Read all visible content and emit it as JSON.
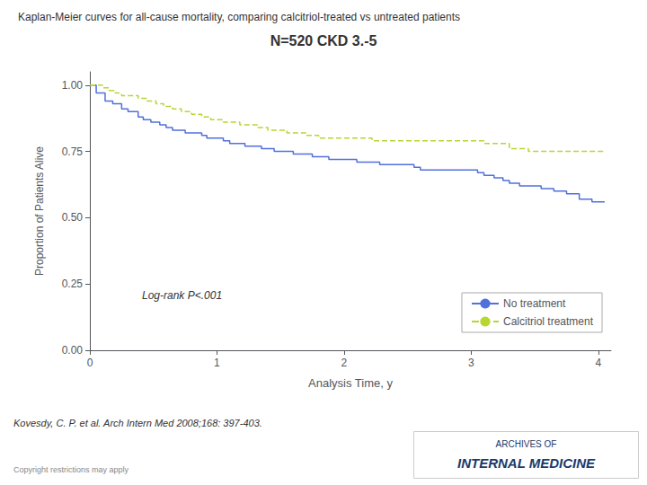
{
  "chart_data": {
    "type": "step",
    "title": "Kaplan-Meier curves for all-cause mortality, comparing calcitriol-treated vs untreated patients",
    "subtitle": "N=520 CKD 3.-5",
    "xlabel": "Analysis Time, y",
    "ylabel": "Proportion of Patients Alive",
    "annotations": [
      "Log-rank P<.001",
      "Kovesdy, C. P. et al. Arch Intern Med 2008;168: 397-403.",
      "Copyright restrictions may apply",
      "ARCHIVES OF",
      "INTERNAL MEDICINE"
    ],
    "xlim": [
      0,
      4.1
    ],
    "ylim": [
      0.0,
      1.05
    ],
    "xticks": [
      0,
      1,
      2,
      3,
      4
    ],
    "yticks": [
      {
        "value": 0.0,
        "label": "0.00"
      },
      {
        "value": 0.25,
        "label": "0.25"
      },
      {
        "value": 0.5,
        "label": "0.50"
      },
      {
        "value": 0.75,
        "label": "0.75"
      },
      {
        "value": 1.0,
        "label": "1.00"
      }
    ],
    "grid": false,
    "legend": "lower right",
    "series": [
      {
        "name": "No treatment",
        "line_style": "solid",
        "x": [
          0.0,
          0.05,
          0.12,
          0.18,
          0.25,
          0.3,
          0.38,
          0.42,
          0.48,
          0.55,
          0.6,
          0.65,
          0.7,
          0.75,
          0.8,
          0.88,
          0.92,
          0.98,
          1.0,
          1.05,
          1.1,
          1.15,
          1.22,
          1.28,
          1.35,
          1.4,
          1.45,
          1.5,
          1.55,
          1.6,
          1.65,
          1.7,
          1.75,
          1.82,
          1.88,
          1.95,
          2.0,
          2.05,
          2.1,
          2.18,
          2.22,
          2.28,
          2.35,
          2.4,
          2.48,
          2.55,
          2.6,
          2.65,
          2.72,
          3.0,
          3.05,
          3.1,
          3.18,
          3.25,
          3.3,
          3.38,
          3.45,
          3.55,
          3.65,
          3.75,
          3.85,
          3.95,
          4.05
        ],
        "values": [
          1.0,
          0.97,
          0.94,
          0.93,
          0.91,
          0.9,
          0.88,
          0.87,
          0.86,
          0.85,
          0.84,
          0.83,
          0.83,
          0.82,
          0.82,
          0.81,
          0.8,
          0.8,
          0.8,
          0.79,
          0.78,
          0.78,
          0.77,
          0.77,
          0.76,
          0.76,
          0.75,
          0.75,
          0.75,
          0.74,
          0.74,
          0.74,
          0.73,
          0.73,
          0.72,
          0.72,
          0.72,
          0.72,
          0.71,
          0.71,
          0.71,
          0.7,
          0.7,
          0.7,
          0.7,
          0.69,
          0.68,
          0.68,
          0.68,
          0.68,
          0.67,
          0.66,
          0.65,
          0.64,
          0.63,
          0.62,
          0.62,
          0.61,
          0.6,
          0.59,
          0.57,
          0.56,
          0.56
        ]
      },
      {
        "name": "Calcitriol treatment",
        "line_style": "dashed",
        "x": [
          0.0,
          0.05,
          0.1,
          0.15,
          0.2,
          0.25,
          0.3,
          0.38,
          0.45,
          0.52,
          0.58,
          0.65,
          0.72,
          0.8,
          0.88,
          0.95,
          1.0,
          1.05,
          1.1,
          1.18,
          1.25,
          1.32,
          1.4,
          1.48,
          1.55,
          1.62,
          1.7,
          1.8,
          1.9,
          1.98,
          2.0,
          2.08,
          2.15,
          2.22,
          2.3,
          2.38,
          2.45,
          3.0,
          3.05,
          3.1,
          3.15,
          3.22,
          3.3,
          3.38,
          3.45,
          3.55,
          3.65,
          3.75,
          3.85,
          3.95,
          4.05
        ],
        "values": [
          1.0,
          1.0,
          0.99,
          0.98,
          0.97,
          0.96,
          0.96,
          0.95,
          0.94,
          0.93,
          0.92,
          0.91,
          0.9,
          0.89,
          0.88,
          0.87,
          0.87,
          0.86,
          0.86,
          0.85,
          0.85,
          0.84,
          0.83,
          0.83,
          0.82,
          0.82,
          0.81,
          0.8,
          0.8,
          0.8,
          0.8,
          0.8,
          0.8,
          0.79,
          0.79,
          0.79,
          0.79,
          0.79,
          0.79,
          0.78,
          0.78,
          0.78,
          0.76,
          0.76,
          0.75,
          0.75,
          0.75,
          0.75,
          0.75,
          0.75,
          0.75
        ]
      }
    ]
  }
}
